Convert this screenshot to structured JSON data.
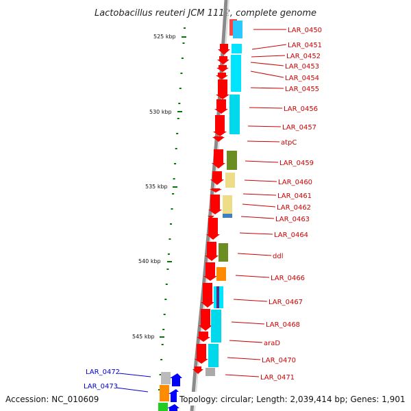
{
  "title": "Lactobacillus reuteri JCM 1112, complete genome",
  "accession": "Accession: NC_010609",
  "summary": "Topology: circular; Length: 2,039,414 bp; Genes: 1,901",
  "colors": {
    "forward_gene": "#ff0000",
    "reverse_gene": "#0000ff",
    "forward_label": "#cc0000",
    "reverse_label": "#0000cc",
    "backbone": "#888888",
    "tick": "#007700"
  },
  "scale_ticks": [
    "525 kbp",
    "530 kbp",
    "535 kbp",
    "540 kbp",
    "545 kbp"
  ],
  "genes_forward": [
    {
      "label": "LAR_0450"
    },
    {
      "label": "LAR_0451"
    },
    {
      "label": "LAR_0452"
    },
    {
      "label": "LAR_0453"
    },
    {
      "label": "LAR_0454"
    },
    {
      "label": "LAR_0455"
    },
    {
      "label": "LAR_0456"
    },
    {
      "label": "LAR_0457"
    },
    {
      "label": "atpC"
    },
    {
      "label": "LAR_0459"
    },
    {
      "label": "LAR_0460"
    },
    {
      "label": "LAR_0461"
    },
    {
      "label": "LAR_0462"
    },
    {
      "label": "LAR_0463"
    },
    {
      "label": "LAR_0464"
    },
    {
      "label": "ddl"
    },
    {
      "label": "LAR_0466"
    },
    {
      "label": "LAR_0467"
    },
    {
      "label": "LAR_0468"
    },
    {
      "label": "araD"
    },
    {
      "label": "LAR_0470"
    },
    {
      "label": "LAR_0471"
    }
  ],
  "genes_reverse": [
    {
      "label": "LAR_0472"
    },
    {
      "label": "LAR_0473"
    }
  ]
}
